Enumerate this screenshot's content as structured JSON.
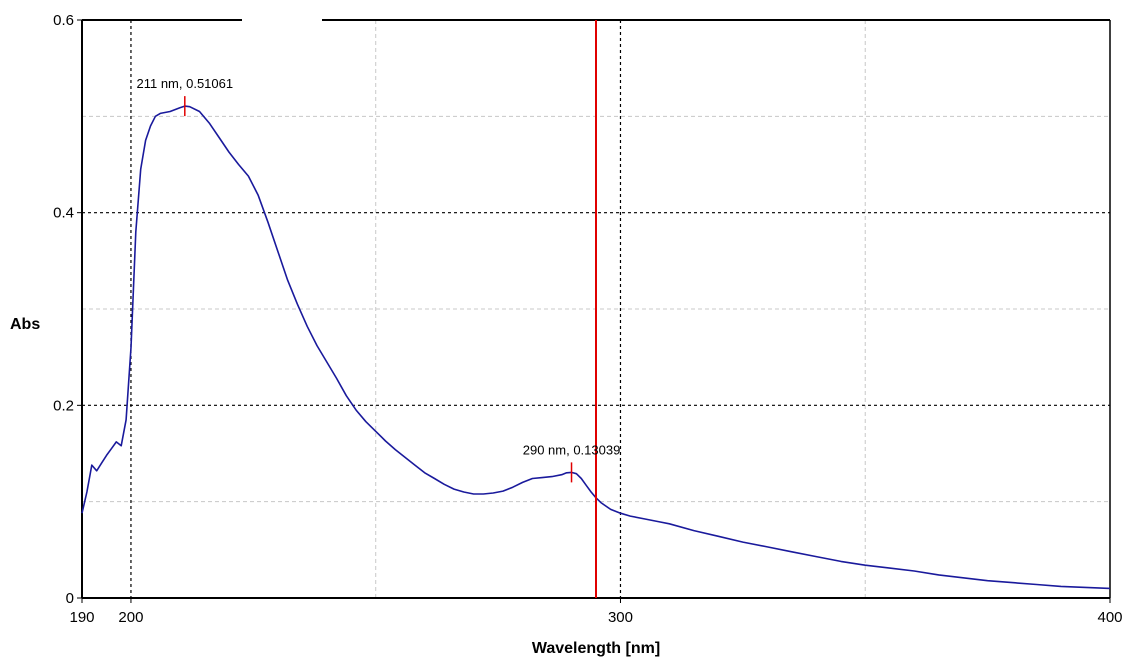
{
  "chart_data": {
    "type": "line",
    "xlabel": "Wavelength [nm]",
    "ylabel": "Abs",
    "xlim": [
      190,
      400
    ],
    "ylim": [
      0,
      0.6
    ],
    "x_ticks": [
      {
        "value": 190,
        "label": "190"
      },
      {
        "value": 200,
        "label": "200"
      },
      {
        "value": 300,
        "label": "300"
      },
      {
        "value": 400,
        "label": "400"
      }
    ],
    "y_ticks": [
      {
        "value": 0,
        "label": "0"
      },
      {
        "value": 0.2,
        "label": "0.2"
      },
      {
        "value": 0.4,
        "label": "0.4"
      },
      {
        "value": 0.6,
        "label": "0.6"
      }
    ],
    "major_grid_x": [
      200,
      300
    ],
    "minor_grid_x": [
      250,
      350
    ],
    "major_grid_y": [
      0.2,
      0.4
    ],
    "minor_grid_y": [
      0.1,
      0.3,
      0.5
    ],
    "grid": true,
    "cursor_x": 295,
    "colors": {
      "line": "#1a1a9c",
      "marker": "#e00000",
      "cursor": "#e00000",
      "major_grid": "#000000",
      "minor_grid": "#c8c8c8"
    },
    "series": [
      {
        "x": [
          190,
          191,
          192,
          193,
          194,
          195,
          196,
          197,
          198,
          199,
          200,
          201,
          202,
          203,
          204,
          205,
          206,
          208,
          210,
          211,
          212,
          214,
          216,
          218,
          220,
          222,
          224,
          226,
          228,
          230,
          232,
          234,
          236,
          238,
          240,
          242,
          244,
          246,
          248,
          250,
          252,
          254,
          256,
          258,
          260,
          262,
          264,
          266,
          268,
          270,
          272,
          274,
          276,
          278,
          280,
          282,
          284,
          286,
          288,
          289,
          290,
          291,
          292,
          293,
          294,
          295,
          296,
          298,
          300,
          302,
          305,
          308,
          310,
          315,
          320,
          325,
          330,
          335,
          340,
          345,
          350,
          355,
          360,
          365,
          370,
          375,
          380,
          385,
          390,
          395,
          400
        ],
        "y": [
          0.088,
          0.11,
          0.138,
          0.132,
          0.14,
          0.148,
          0.155,
          0.162,
          0.158,
          0.185,
          0.26,
          0.38,
          0.445,
          0.475,
          0.49,
          0.5,
          0.503,
          0.505,
          0.509,
          0.5106,
          0.51,
          0.505,
          0.493,
          0.478,
          0.463,
          0.45,
          0.438,
          0.418,
          0.39,
          0.36,
          0.33,
          0.305,
          0.282,
          0.262,
          0.245,
          0.228,
          0.21,
          0.195,
          0.183,
          0.173,
          0.163,
          0.154,
          0.146,
          0.138,
          0.13,
          0.124,
          0.118,
          0.113,
          0.11,
          0.108,
          0.108,
          0.109,
          0.111,
          0.115,
          0.12,
          0.124,
          0.125,
          0.126,
          0.128,
          0.13,
          0.1304,
          0.129,
          0.124,
          0.117,
          0.11,
          0.104,
          0.099,
          0.092,
          0.088,
          0.085,
          0.082,
          0.079,
          0.077,
          0.07,
          0.064,
          0.058,
          0.053,
          0.048,
          0.043,
          0.038,
          0.034,
          0.031,
          0.028,
          0.024,
          0.021,
          0.018,
          0.016,
          0.014,
          0.012,
          0.011,
          0.01
        ]
      }
    ],
    "annotations": [
      {
        "x": 211,
        "y": 0.51061,
        "label": "211 nm, 0.51061"
      },
      {
        "x": 290,
        "y": 0.13039,
        "label": "290 nm, 0.13039"
      }
    ]
  }
}
